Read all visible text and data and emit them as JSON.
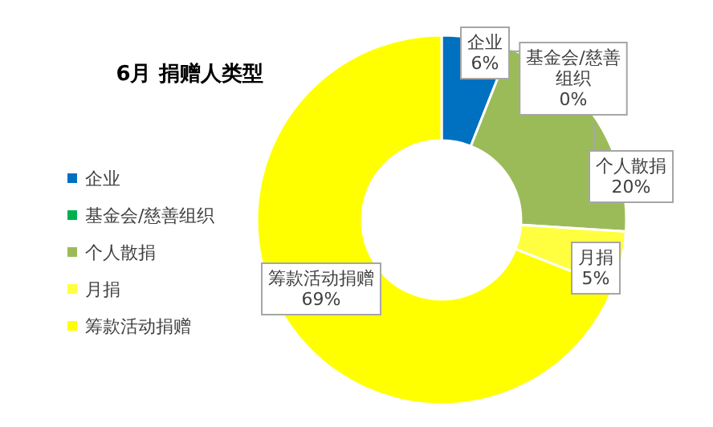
{
  "chart_data": {
    "type": "donut",
    "title": "6月  捐赠人类型",
    "categories": [
      "企业",
      "基金会/慈善组织",
      "个人散捐",
      "月捐",
      "筹款活动捐赠"
    ],
    "values": [
      6,
      0,
      20,
      5,
      69
    ],
    "value_labels": [
      "6%",
      "0%",
      "20%",
      "5%",
      "69%"
    ],
    "colors": [
      "#0070c0",
      "#00b050",
      "#9bbb59",
      "#ffff40",
      "#ffff00"
    ],
    "legend": "left"
  }
}
